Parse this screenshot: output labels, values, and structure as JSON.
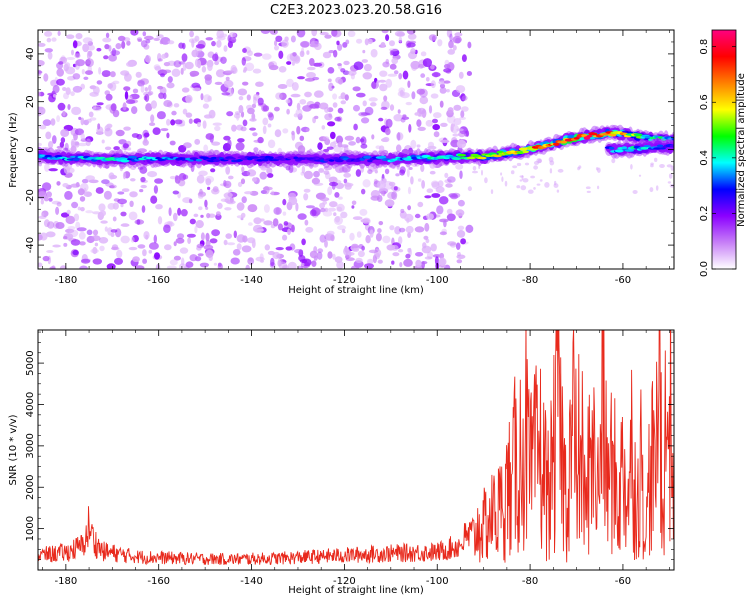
{
  "title": "C2E3.2023.023.20.58.G16",
  "chart_data": [
    {
      "type": "heatmap",
      "xlabel": "Height of straight line (km)",
      "ylabel": "Frequency (Hz)",
      "xlim": [
        -186,
        -49
      ],
      "ylim": [
        -50,
        50
      ],
      "xticks": [
        -180,
        -160,
        -140,
        -120,
        -100,
        -80,
        -60
      ],
      "yticks": [
        -40,
        -20,
        0,
        20,
        40
      ],
      "colorbar": {
        "label": "Normalized spectral amplitude",
        "range": [
          0.0,
          0.86
        ],
        "ticks": [
          0.0,
          0.2,
          0.4,
          0.6,
          0.8
        ],
        "colormap": [
          "#ffffff",
          "#c77ff7",
          "#8b00ff",
          "#0000ff",
          "#00ffff",
          "#00ff00",
          "#ffff00",
          "#ff8000",
          "#ff0000",
          "#ff0080"
        ]
      },
      "ridge": {
        "x": [
          -186,
          -170,
          -150,
          -130,
          -110,
          -95,
          -90,
          -80,
          -70,
          -62,
          -55,
          -49
        ],
        "y": [
          -3,
          -4,
          -4,
          -4,
          -4,
          -3,
          -3,
          0,
          5,
          7,
          5,
          4
        ],
        "amplitude": [
          0.35,
          0.4,
          0.3,
          0.25,
          0.35,
          0.45,
          0.55,
          0.7,
          0.8,
          0.7,
          0.45,
          0.4
        ]
      },
      "secondary_ridge": {
        "x": [
          -63,
          -58,
          -53,
          -49
        ],
        "y": [
          0,
          0,
          1,
          1
        ],
        "amplitude": [
          0.35,
          0.4,
          0.35,
          0.3
        ]
      },
      "noise_region": {
        "x_range": [
          -186,
          -93
        ],
        "y_range": [
          -50,
          50
        ],
        "amplitude_range": [
          0.05,
          0.2
        ]
      }
    },
    {
      "type": "line",
      "xlabel": "Height of straight line (km)",
      "ylabel": "SNR (10 * v/v)",
      "xlim": [
        -186,
        -49
      ],
      "ylim": [
        0,
        5800
      ],
      "xticks": [
        -180,
        -160,
        -140,
        -120,
        -100,
        -80,
        -60
      ],
      "yticks": [
        1000,
        2000,
        3000,
        4000,
        5000
      ],
      "color": "#e8291c",
      "series": [
        {
          "x": [
            -186,
            -180,
            -176,
            -175,
            -174,
            -172,
            -165,
            -155,
            -145,
            -135,
            -125,
            -115,
            -105,
            -100,
            -95,
            -94,
            -92,
            -90,
            -88,
            -86,
            -84,
            -82,
            -81,
            -80,
            -78,
            -76,
            -75,
            -74,
            -72,
            -71,
            -70,
            -69,
            -68,
            -67,
            -66,
            -65,
            -64.5,
            -64,
            -63,
            -62,
            -61,
            -60,
            -59,
            -58,
            -57,
            -56,
            -55,
            -54,
            -53,
            -52,
            -51.5,
            -51,
            -50,
            -49
          ],
          "y": [
            350,
            420,
            600,
            1100,
            700,
            450,
            320,
            280,
            260,
            280,
            330,
            380,
            420,
            430,
            600,
            780,
            900,
            1100,
            1300,
            1500,
            2300,
            2800,
            3500,
            2200,
            2900,
            1800,
            2600,
            3700,
            1500,
            4000,
            2500,
            3100,
            1200,
            3200,
            2400,
            1600,
            5700,
            2800,
            2000,
            3000,
            1300,
            2600,
            1600,
            3100,
            1400,
            2900,
            800,
            3000,
            1800,
            5200,
            1200,
            3000,
            4200,
            2200
          ]
        }
      ]
    }
  ]
}
